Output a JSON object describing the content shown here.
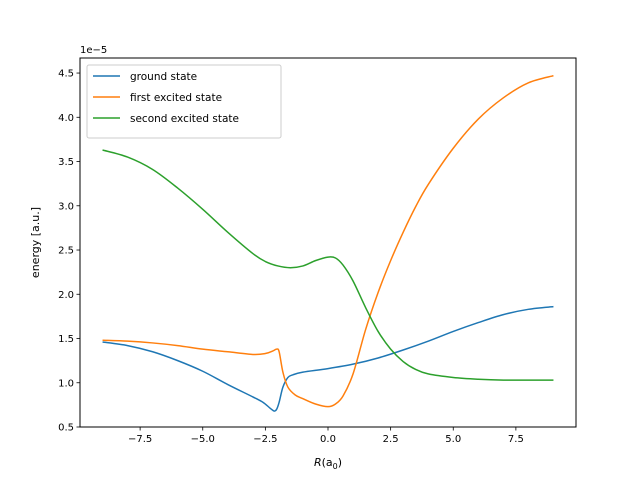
{
  "chart_data": {
    "type": "line",
    "xlabel_main": "R",
    "xlabel_unit_base": "a",
    "xlabel_unit_sub": "0",
    "ylabel": "energy [a.u.]",
    "y_scale_label": "1e−5",
    "xlim": [
      -9.9,
      9.9
    ],
    "ylim": [
      0.5,
      4.67
    ],
    "x_ticks": [
      -7.5,
      -5.0,
      -2.5,
      0.0,
      2.5,
      5.0,
      7.5
    ],
    "x_tick_labels": [
      "−7.5",
      "−5.0",
      "−2.5",
      "0.0",
      "2.5",
      "5.0",
      "7.5"
    ],
    "y_ticks": [
      0.5,
      1.0,
      1.5,
      2.0,
      2.5,
      3.0,
      3.5,
      4.0,
      4.5
    ],
    "y_tick_labels": [
      "0.5",
      "1.0",
      "1.5",
      "2.0",
      "2.5",
      "3.0",
      "3.5",
      "4.0",
      "4.5"
    ],
    "grid": false,
    "legend_position": "top-left",
    "series": [
      {
        "name": "ground state",
        "color": "#1f77b4",
        "x": [
          -9.0,
          -8.0,
          -7.0,
          -6.0,
          -5.0,
          -4.0,
          -3.0,
          -2.6,
          -2.3,
          -2.15,
          -2.05,
          -1.95,
          -1.8,
          -1.6,
          -1.4,
          -1.0,
          0.0,
          1.0,
          2.0,
          3.0,
          4.0,
          5.0,
          6.0,
          7.0,
          8.0,
          9.0
        ],
        "y": [
          1.46,
          1.42,
          1.35,
          1.25,
          1.13,
          0.98,
          0.84,
          0.78,
          0.71,
          0.68,
          0.7,
          0.78,
          0.95,
          1.06,
          1.09,
          1.12,
          1.16,
          1.21,
          1.28,
          1.37,
          1.47,
          1.58,
          1.68,
          1.77,
          1.83,
          1.86
        ]
      },
      {
        "name": "first excited state",
        "color": "#ff7f0e",
        "x": [
          -9.0,
          -8.0,
          -7.0,
          -6.0,
          -5.0,
          -4.0,
          -3.0,
          -2.5,
          -2.2,
          -2.05,
          -1.95,
          -1.8,
          -1.6,
          -1.3,
          -1.0,
          -0.5,
          0.0,
          0.3,
          0.6,
          1.0,
          1.5,
          2.0,
          2.5,
          3.0,
          3.5,
          4.0,
          5.0,
          6.0,
          7.0,
          8.0,
          9.0
        ],
        "y": [
          1.48,
          1.47,
          1.45,
          1.42,
          1.38,
          1.35,
          1.32,
          1.33,
          1.36,
          1.38,
          1.35,
          1.12,
          0.95,
          0.86,
          0.82,
          0.76,
          0.73,
          0.76,
          0.85,
          1.1,
          1.6,
          2.02,
          2.38,
          2.7,
          2.99,
          3.24,
          3.65,
          3.98,
          4.22,
          4.39,
          4.47
        ]
      },
      {
        "name": "second excited state",
        "color": "#2ca02c",
        "x": [
          -9.0,
          -8.0,
          -7.0,
          -6.0,
          -5.0,
          -4.0,
          -3.0,
          -2.5,
          -2.0,
          -1.5,
          -1.0,
          -0.5,
          0.0,
          0.3,
          0.6,
          1.0,
          1.5,
          2.0,
          2.5,
          3.0,
          3.5,
          4.0,
          5.0,
          6.0,
          7.0,
          8.0,
          9.0
        ],
        "y": [
          3.63,
          3.55,
          3.41,
          3.2,
          2.96,
          2.7,
          2.46,
          2.37,
          2.32,
          2.3,
          2.32,
          2.38,
          2.42,
          2.41,
          2.33,
          2.15,
          1.85,
          1.58,
          1.38,
          1.24,
          1.15,
          1.1,
          1.06,
          1.04,
          1.03,
          1.03,
          1.03
        ]
      }
    ]
  }
}
